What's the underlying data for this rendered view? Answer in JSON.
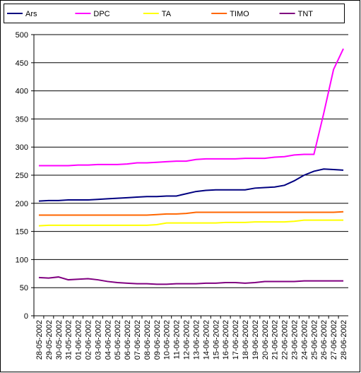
{
  "chart_data": {
    "type": "line",
    "categories": [
      "28-05-2002",
      "29-05-2002",
      "30-05-2002",
      "31-05-2002",
      "01-06-2002",
      "02-06-2002",
      "03-06-2002",
      "04-06-2002",
      "05-06-2002",
      "06-06-2002",
      "07-06-2002",
      "08-06-2002",
      "09-06-2002",
      "10-06-2002",
      "11-06-2002",
      "12-06-2002",
      "13-06-2002",
      "14-06-2002",
      "15-06-2002",
      "16-06-2002",
      "17-06-2002",
      "18-06-2002",
      "19-06-2002",
      "20-06-2002",
      "21-06-2002",
      "22-06-2002",
      "23-06-2002",
      "24-06-2002",
      "25-06-2002",
      "26-06-2002",
      "27-06-2002",
      "28-06-2002"
    ],
    "series": [
      {
        "name": "Ars",
        "color": "#000080",
        "values": [
          204,
          205,
          205,
          206,
          206,
          206,
          207,
          208,
          209,
          210,
          211,
          212,
          212,
          213,
          213,
          217,
          221,
          223,
          224,
          224,
          224,
          224,
          227,
          228,
          229,
          232,
          240,
          250,
          257,
          261,
          260,
          259
        ]
      },
      {
        "name": "DPC",
        "color": "#ff00ff",
        "values": [
          267,
          267,
          267,
          267,
          268,
          268,
          269,
          269,
          269,
          270,
          272,
          272,
          273,
          274,
          275,
          275,
          278,
          279,
          279,
          279,
          279,
          280,
          280,
          280,
          282,
          283,
          286,
          287,
          287,
          360,
          438,
          475
        ]
      },
      {
        "name": "TA",
        "color": "#ffff00",
        "values": [
          160,
          161,
          161,
          161,
          161,
          161,
          161,
          161,
          161,
          161,
          161,
          161,
          162,
          165,
          165,
          165,
          165,
          165,
          165,
          166,
          166,
          166,
          167,
          167,
          167,
          167,
          168,
          170,
          170,
          170,
          170,
          170
        ]
      },
      {
        "name": "TIMO",
        "color": "#ff6600",
        "values": [
          179,
          179,
          179,
          179,
          179,
          179,
          179,
          179,
          179,
          179,
          179,
          179,
          180,
          181,
          181,
          182,
          184,
          184,
          184,
          184,
          184,
          184,
          184,
          184,
          184,
          184,
          184,
          184,
          184,
          184,
          184,
          185
        ]
      },
      {
        "name": "TNT",
        "color": "#800080",
        "values": [
          68,
          67,
          69,
          64,
          65,
          66,
          64,
          61,
          59,
          58,
          57,
          57,
          56,
          56,
          57,
          57,
          57,
          58,
          58,
          59,
          59,
          58,
          59,
          61,
          61,
          61,
          61,
          62,
          62,
          62,
          62,
          62
        ]
      }
    ],
    "ylim": [
      0,
      500
    ],
    "yticks": [
      0,
      50,
      100,
      150,
      200,
      250,
      300,
      350,
      400,
      450,
      500
    ],
    "grid": true,
    "legend": "top"
  }
}
